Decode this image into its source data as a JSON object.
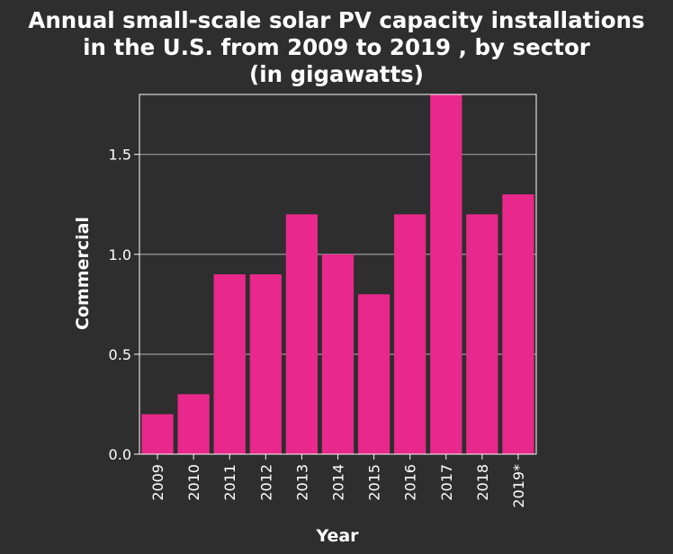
{
  "chart_data": {
    "type": "bar",
    "title_lines": [
      "Annual small-scale solar PV capacity installations",
      "in the U.S. from 2009 to 2019 , by sector",
      "(in gigawatts)"
    ],
    "xlabel": "Year",
    "ylabel": "Commercial",
    "categories": [
      "2009",
      "2010",
      "2011",
      "2012",
      "2013",
      "2014",
      "2015",
      "2016",
      "2017",
      "2018",
      "2019*"
    ],
    "values": [
      0.2,
      0.3,
      0.9,
      0.9,
      1.2,
      1.0,
      0.8,
      1.2,
      1.8,
      1.2,
      1.3
    ],
    "ylim": [
      0,
      1.8
    ],
    "yticks": [
      0.0,
      0.5,
      1.0,
      1.5
    ],
    "ytick_labels": [
      "0.0",
      "0.5",
      "1.0",
      "1.5"
    ],
    "grid": "horizontal",
    "colors": {
      "background": "#2e2e2e",
      "bar": "#e8288a",
      "grid": "#9a9a9a",
      "axis": "#ffffff",
      "text": "#ffffff"
    }
  }
}
